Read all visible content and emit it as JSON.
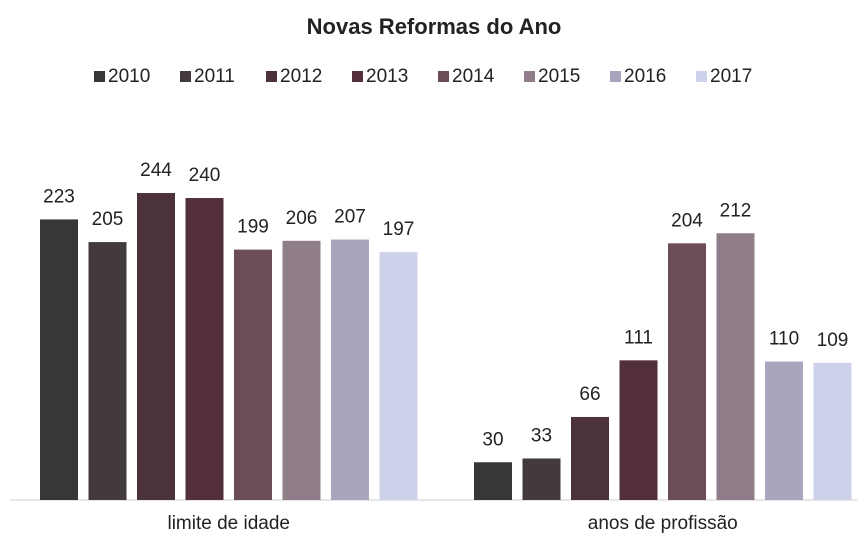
{
  "chart_data": {
    "type": "bar",
    "title": "Novas Reformas do Ano",
    "categories": [
      "limite de idade",
      "anos de profissão"
    ],
    "series": [
      {
        "name": "2010",
        "color": "#39363a",
        "values": [
          223,
          30
        ]
      },
      {
        "name": "2011",
        "color": "#423a3e",
        "values": [
          205,
          33
        ]
      },
      {
        "name": "2012",
        "color": "#4b3339",
        "values": [
          244,
          66
        ]
      },
      {
        "name": "2013",
        "color": "#522f39",
        "values": [
          240,
          111
        ]
      },
      {
        "name": "2014",
        "color": "#6b4d58",
        "values": [
          199,
          204
        ]
      },
      {
        "name": "2015",
        "color": "#8f7d8a",
        "values": [
          206,
          212
        ]
      },
      {
        "name": "2016",
        "color": "#aaa4bf",
        "values": [
          207,
          110
        ]
      },
      {
        "name": "2017",
        "color": "#cdd1ea",
        "values": [
          197,
          109
        ]
      }
    ]
  }
}
